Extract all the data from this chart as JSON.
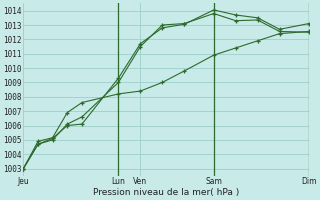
{
  "background_color": "#c8eae8",
  "grid_color": "#9ecfca",
  "line_color": "#2d6a2d",
  "title": "Pression niveau de la mer( hPa )",
  "ylim": [
    1002.5,
    1014.5
  ],
  "yticks": [
    1003,
    1004,
    1005,
    1006,
    1007,
    1008,
    1009,
    1010,
    1011,
    1012,
    1013,
    1014
  ],
  "day_labels": [
    "Jeu",
    "Lun",
    "Ven",
    "Sam",
    "Dim"
  ],
  "day_positions": [
    0.0,
    4.33,
    5.33,
    8.67,
    13.0
  ],
  "xmax": 13.0,
  "series": [
    {
      "x": [
        0.0,
        0.67,
        1.33,
        2.0,
        2.67,
        4.33,
        5.33,
        6.33,
        7.33,
        8.67,
        9.67,
        10.67,
        11.67,
        13.0
      ],
      "y": [
        1003.0,
        1004.7,
        1005.1,
        1006.0,
        1006.1,
        1009.3,
        1011.7,
        1012.8,
        1013.05,
        1014.05,
        1013.7,
        1013.5,
        1012.7,
        1013.1
      ]
    },
    {
      "x": [
        0.0,
        0.67,
        1.33,
        2.0,
        2.67,
        4.33,
        5.33,
        6.33,
        7.33,
        8.67,
        9.67,
        10.67,
        11.67,
        13.0
      ],
      "y": [
        1003.0,
        1004.7,
        1005.0,
        1006.1,
        1006.6,
        1009.0,
        1011.5,
        1013.0,
        1013.1,
        1013.8,
        1013.3,
        1013.35,
        1012.55,
        1012.5
      ]
    },
    {
      "x": [
        0.0,
        0.67,
        1.33,
        2.0,
        2.67,
        4.33,
        5.33,
        6.33,
        7.33,
        8.67,
        9.67,
        10.67,
        11.67,
        13.0
      ],
      "y": [
        1003.0,
        1004.9,
        1005.15,
        1006.9,
        1007.6,
        1008.2,
        1008.4,
        1009.0,
        1009.8,
        1010.9,
        1011.4,
        1011.9,
        1012.4,
        1012.55
      ]
    }
  ],
  "vlines": [
    4.33,
    8.67,
    13.0
  ],
  "title_fontsize": 6.5,
  "tick_fontsize": 5.5
}
